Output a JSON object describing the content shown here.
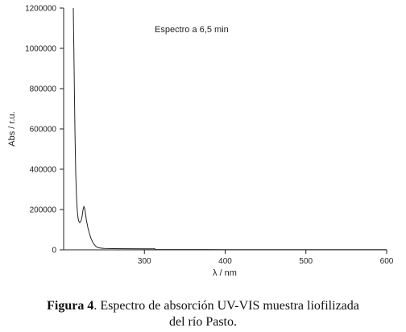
{
  "chart_data": {
    "type": "line",
    "annotation": "Espectro a 6,5 min",
    "xlabel": "λ / nm",
    "ylabel": "Abs / r.u.",
    "xlim": [
      200,
      600
    ],
    "ylim": [
      0,
      1200000
    ],
    "x_ticks": [
      300,
      400,
      500,
      600
    ],
    "y_ticks": [
      0,
      200000,
      400000,
      600000,
      800000,
      1000000,
      1200000
    ],
    "grid": false,
    "series": [
      {
        "x": [
          212,
          213,
          214,
          215,
          216,
          217,
          218,
          219,
          220,
          221,
          222,
          223,
          224,
          225,
          226,
          227,
          228,
          229,
          230,
          232,
          234,
          236,
          238,
          240,
          242,
          245,
          250,
          260,
          280,
          300,
          313,
          314,
          320,
          350,
          400,
          450,
          500,
          550,
          600
        ],
        "y": [
          1200000,
          900000,
          600000,
          380000,
          260000,
          190000,
          155000,
          140000,
          135000,
          140000,
          150000,
          170000,
          200000,
          215000,
          205000,
          180000,
          150000,
          130000,
          110000,
          80000,
          55000,
          38000,
          26000,
          17000,
          12000,
          9000,
          7000,
          6000,
          5500,
          5000,
          5000,
          2000,
          1800,
          1500,
          1200,
          1000,
          900,
          800,
          700
        ]
      }
    ]
  },
  "caption": {
    "label": "Figura 4",
    "text": ". Espectro de absorción UV-VIS muestra liofilizada",
    "line2": "del río Pasto."
  }
}
